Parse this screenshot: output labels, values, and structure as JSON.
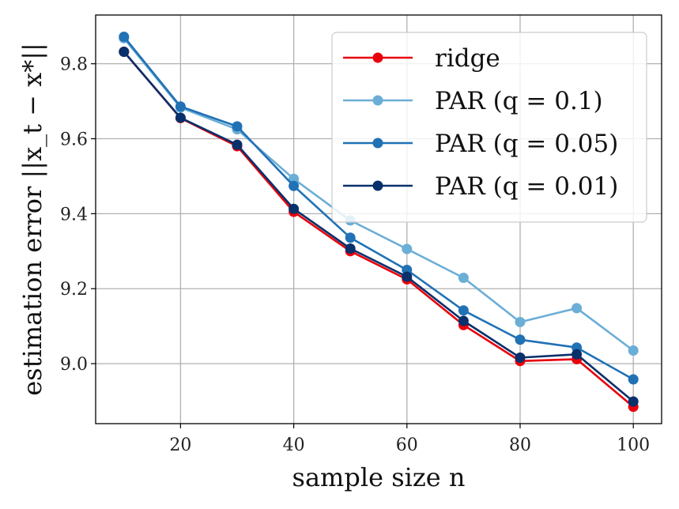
{
  "chart_data": {
    "type": "line",
    "title": "",
    "xlabel": "sample size n",
    "ylabel": "estimation error ||x_t − x*||",
    "x": [
      10,
      20,
      30,
      40,
      50,
      60,
      70,
      80,
      90,
      100
    ],
    "xlim": [
      5,
      105
    ],
    "ylim": [
      8.84,
      9.93
    ],
    "xticks": [
      20,
      40,
      60,
      80,
      100
    ],
    "yticks": [
      9.0,
      9.2,
      9.4,
      9.6,
      9.8
    ],
    "xtick_labels": [
      "20",
      "40",
      "60",
      "80",
      "100"
    ],
    "ytick_labels": [
      "9.0",
      "9.2",
      "9.4",
      "9.6",
      "9.8"
    ],
    "grid": true,
    "legend_position": "top-right",
    "series": [
      {
        "name": "ridge",
        "color": "#e8000b",
        "values": [
          9.832,
          9.655,
          9.58,
          9.405,
          9.3,
          9.225,
          9.103,
          9.007,
          9.012,
          8.885
        ]
      },
      {
        "name": "PAR (q = 0.1)",
        "color": "#6baed6",
        "values": [
          9.868,
          9.683,
          9.625,
          9.493,
          9.382,
          9.306,
          9.229,
          9.111,
          9.148,
          9.035
        ]
      },
      {
        "name": "PAR (q = 0.05)",
        "color": "#2171b5",
        "values": [
          9.872,
          9.686,
          9.633,
          9.474,
          9.336,
          9.25,
          9.142,
          9.064,
          9.043,
          8.958
        ]
      },
      {
        "name": "PAR (q = 0.01)",
        "color": "#08306b",
        "values": [
          9.832,
          9.656,
          9.584,
          9.413,
          9.307,
          9.232,
          9.114,
          9.016,
          9.025,
          8.899
        ]
      }
    ]
  }
}
